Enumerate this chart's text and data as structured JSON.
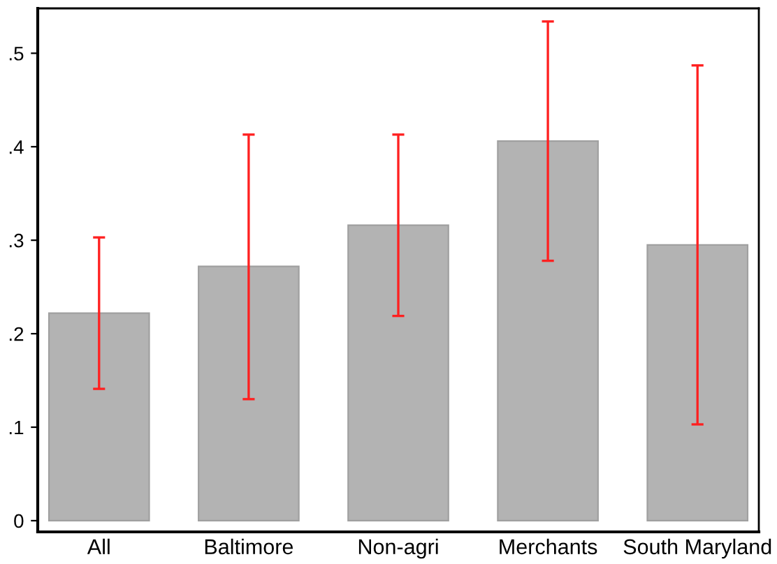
{
  "chart_data": {
    "type": "bar",
    "categories": [
      "All",
      "Baltimore",
      "Non-agri",
      "Merchants",
      "South Maryland"
    ],
    "series": [
      {
        "color": "#b3b3b3",
        "values": [
          0.222,
          0.272,
          0.316,
          0.406,
          0.295
        ],
        "errors": [
          [
            0.141,
            0.303
          ],
          [
            0.13,
            0.413
          ],
          [
            0.219,
            0.413
          ],
          [
            0.278,
            0.534
          ],
          [
            0.103,
            0.487
          ]
        ]
      }
    ],
    "ylim": [
      -0.012,
      0.548
    ],
    "yticks": [
      {
        "value": 0,
        "label": "0"
      },
      {
        "value": 0.1,
        "label": ".1"
      },
      {
        "value": 0.2,
        "label": ".2"
      },
      {
        "value": 0.3,
        "label": ".3"
      },
      {
        "value": 0.4,
        "label": ".4"
      },
      {
        "value": 0.5,
        "label": ".5"
      }
    ],
    "grid": false,
    "legend": false
  }
}
